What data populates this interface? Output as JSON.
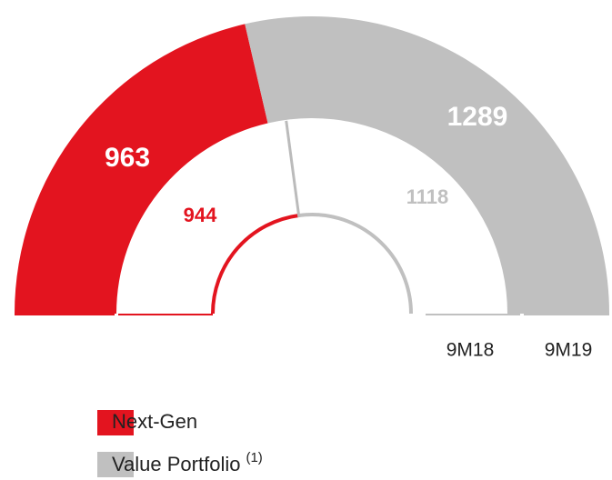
{
  "chart_data": {
    "type": "semi-donut",
    "categories": [
      "9M18",
      "9M19"
    ],
    "series": [
      {
        "name": "Next-Gen",
        "color": "#e3141f",
        "values": [
          944,
          963
        ]
      },
      {
        "name": "Value Portfolio",
        "color": "#c0c0c0",
        "values": [
          1118,
          1289
        ]
      }
    ],
    "legend_footnote": "(1)"
  }
}
